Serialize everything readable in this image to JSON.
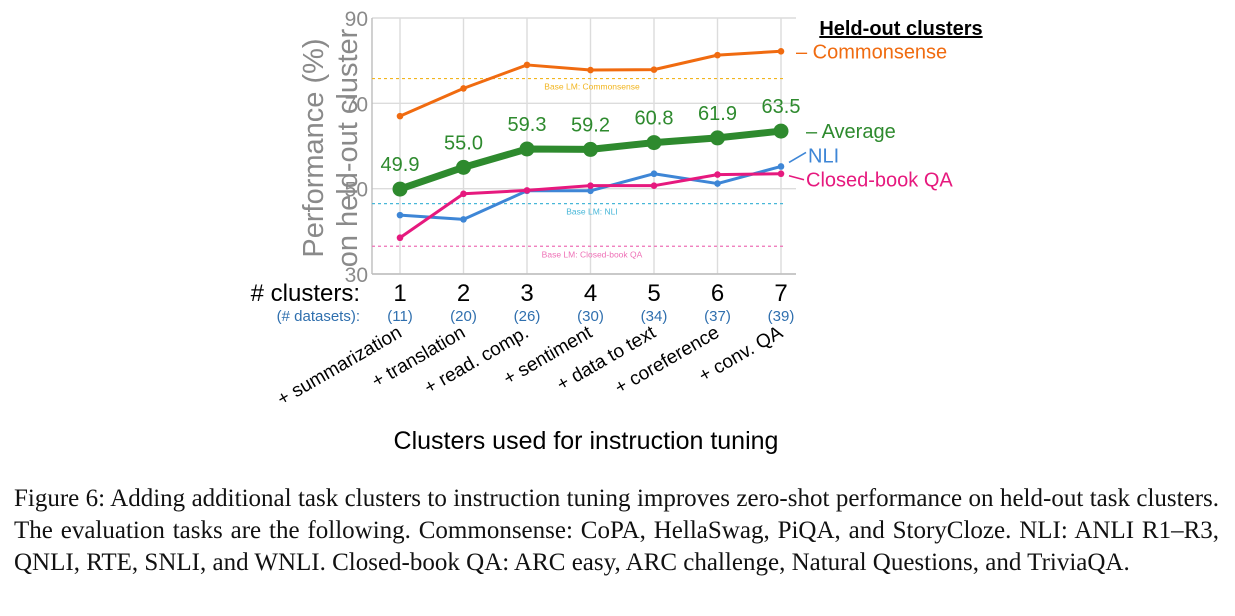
{
  "chart_data": {
    "type": "line",
    "y_axis_label_line1": "Performance (%)",
    "y_axis_label_line2": "on held-out cluster",
    "xlabel": "Clusters used for instruction tuning",
    "ylim": [
      30,
      90
    ],
    "yticks": [
      30,
      50,
      70,
      90
    ],
    "x": [
      1,
      2,
      3,
      4,
      5,
      6,
      7
    ],
    "clusters_label": "# clusters:",
    "datasets_label": "(# datasets):",
    "datasets": [
      "(11)",
      "(20)",
      "(26)",
      "(30)",
      "(34)",
      "(37)",
      "(39)"
    ],
    "cluster_names": [
      "+ summarization",
      "+ translation",
      "+ read. comp.",
      "+ sentiment",
      "+ data to text",
      "+ coreference",
      "+ conv. QA"
    ],
    "legend_title": "Held-out clusters",
    "series": [
      {
        "name": "Commonsense",
        "legend": "– Commonsense",
        "color": "#F06B10",
        "values": [
          67.0,
          73.5,
          79.0,
          77.8,
          77.9,
          81.3,
          82.2
        ],
        "marker": "small",
        "width": 3
      },
      {
        "name": "NLI",
        "legend": "NLI",
        "color": "#3E86D6",
        "values": [
          43.8,
          42.8,
          49.5,
          49.5,
          53.5,
          51.2,
          55.2
        ],
        "marker": "small",
        "width": 3
      },
      {
        "name": "Closed-book QA",
        "legend": "Closed-book QA",
        "color": "#E6197E",
        "values": [
          38.5,
          48.8,
          49.6,
          50.7,
          50.7,
          53.3,
          53.5
        ],
        "marker": "small",
        "width": 3
      },
      {
        "name": "Average",
        "legend": "– Average",
        "color": "#2E8A2E",
        "values": [
          49.9,
          55.0,
          59.3,
          59.2,
          60.8,
          61.9,
          63.5
        ],
        "marker": "big",
        "width": 7,
        "labels": [
          "49.9",
          "55.0",
          "59.3",
          "59.2",
          "60.8",
          "61.9",
          "63.5"
        ]
      }
    ],
    "baselines": [
      {
        "label": "Base LM: Commonsense",
        "value": 75.8,
        "color": "#F2B51F"
      },
      {
        "label": "Base LM: NLI",
        "value": 46.5,
        "color": "#48B7D8"
      },
      {
        "label": "Base LM: Closed-book QA",
        "value": 36.5,
        "color": "#EE70B6"
      }
    ]
  },
  "caption": "Figure 6: Adding additional task clusters to instruction tuning improves zero-shot performance on held-out task clusters. The evaluation tasks are the following. Commonsense: CoPA, HellaSwag, PiQA, and StoryCloze. NLI: ANLI R1–R3, QNLI, RTE, SNLI, and WNLI. Closed-book QA: ARC easy, ARC challenge, Natural Questions, and TriviaQA."
}
